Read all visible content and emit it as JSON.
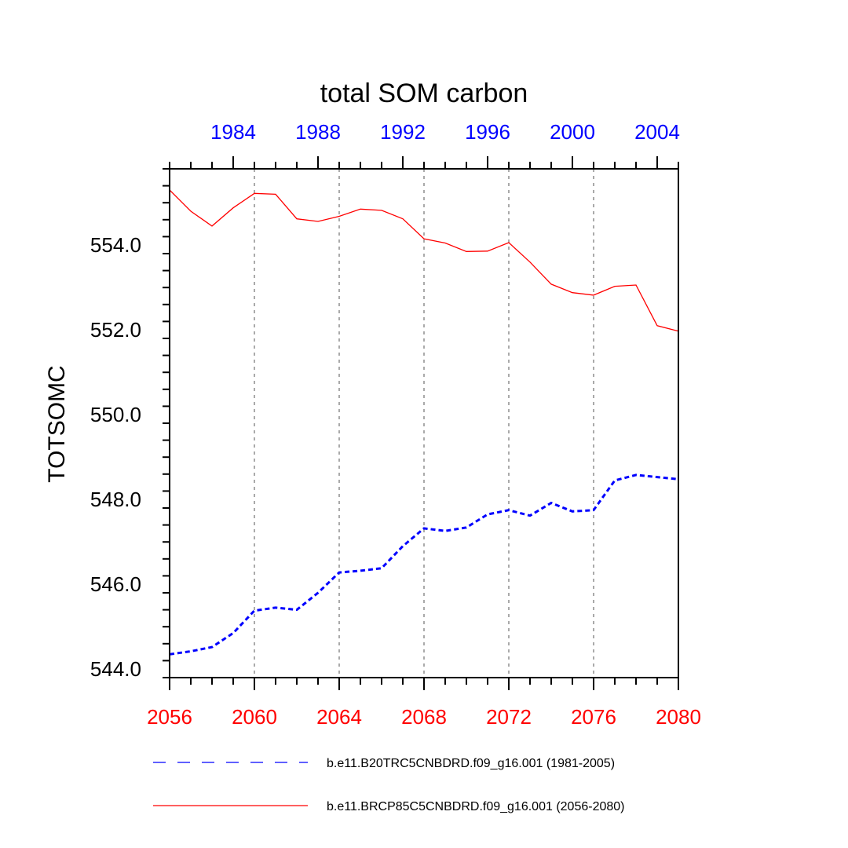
{
  "colors": {
    "historical": "#0000ff",
    "future": "#ff0000",
    "grid": "#aaaaaa",
    "axis": "#000000"
  },
  "chart_data": {
    "type": "line",
    "title": "total SOM carbon",
    "ylabel": "TOTSOMC",
    "xlabel": "",
    "ylim": [
      543.8,
      555.8
    ],
    "yticks": [
      544.0,
      546.0,
      548.0,
      550.0,
      552.0,
      554.0
    ],
    "ytick_labels": [
      "544.0",
      "546.0",
      "548.0",
      "550.0",
      "552.0",
      "554.0"
    ],
    "bottom_axis": {
      "range": [
        2056,
        2080
      ],
      "ticks": [
        2056,
        2060,
        2064,
        2068,
        2072,
        2076,
        2080
      ],
      "labels": [
        "2056",
        "2060",
        "2064",
        "2068",
        "2072",
        "2076",
        "2080"
      ],
      "color": "#ff0000"
    },
    "top_axis": {
      "range": [
        1981,
        2005
      ],
      "ticks": [
        1984,
        1988,
        1992,
        1996,
        2000,
        2004
      ],
      "labels": [
        "1984",
        "1988",
        "1992",
        "1996",
        "2000",
        "2004"
      ],
      "color": "#0000ff"
    },
    "vertical_grid_at": [
      2060,
      2064,
      2068,
      2072,
      2076
    ],
    "series": [
      {
        "name": "b.e11.B20TRC5CNBDRD.f09_g16.001 (1981-2005)",
        "style": "dashed",
        "color": "#0000ff",
        "x": [
          1981,
          1982,
          1983,
          1984,
          1985,
          1986,
          1987,
          1988,
          1989,
          1990,
          1991,
          1992,
          1993,
          1994,
          1995,
          1996,
          1997,
          1998,
          1999,
          2000,
          2001,
          2002,
          2003,
          2004,
          2005
        ],
        "values": [
          544.35,
          544.42,
          544.52,
          544.85,
          545.38,
          545.45,
          545.4,
          545.8,
          546.28,
          546.32,
          546.38,
          546.9,
          547.32,
          547.26,
          547.34,
          547.65,
          547.75,
          547.62,
          547.92,
          547.72,
          547.75,
          548.45,
          548.58,
          548.53,
          548.48
        ]
      },
      {
        "name": "b.e11.BRCP85C5CNBDRD.f09_g16.001 (2056-2080)",
        "style": "solid",
        "color": "#ff0000",
        "x": [
          2056,
          2057,
          2058,
          2059,
          2060,
          2061,
          2062,
          2063,
          2064,
          2065,
          2066,
          2067,
          2068,
          2069,
          2070,
          2071,
          2072,
          2073,
          2074,
          2075,
          2076,
          2077,
          2078,
          2079,
          2080
        ],
        "values": [
          555.3,
          554.8,
          554.45,
          554.88,
          555.22,
          555.2,
          554.62,
          554.56,
          554.68,
          554.85,
          554.82,
          554.62,
          554.15,
          554.05,
          553.85,
          553.86,
          554.06,
          553.6,
          553.08,
          552.88,
          552.82,
          553.03,
          553.06,
          552.1,
          551.97
        ]
      }
    ],
    "legend": {
      "placement": "bottom",
      "entries": [
        "b.e11.B20TRC5CNBDRD.f09_g16.001 (1981-2005)",
        "b.e11.BRCP85C5CNBDRD.f09_g16.001 (2056-2080)"
      ]
    }
  }
}
